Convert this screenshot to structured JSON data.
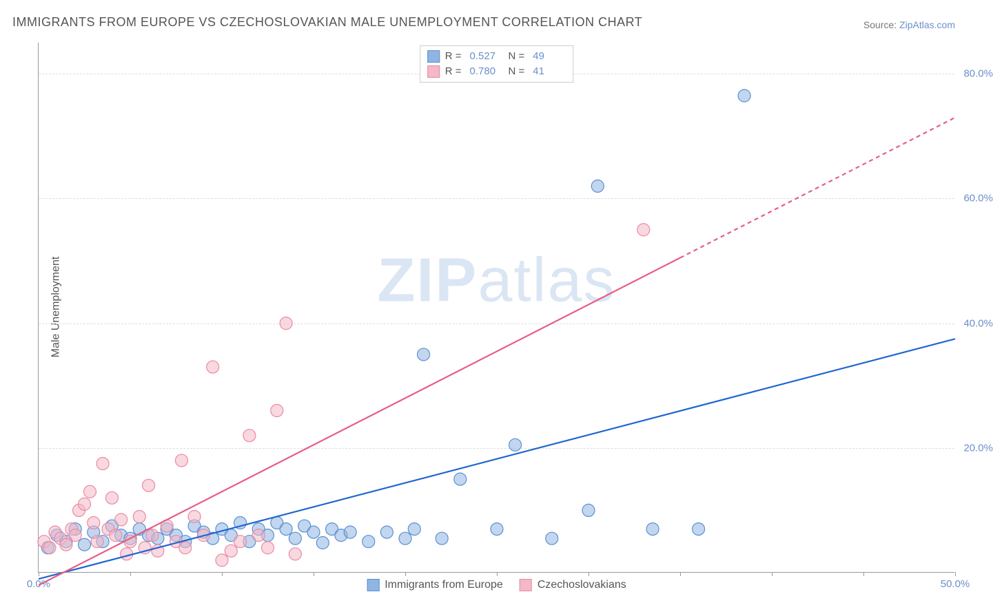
{
  "title": "IMMIGRANTS FROM EUROPE VS CZECHOSLOVAKIAN MALE UNEMPLOYMENT CORRELATION CHART",
  "source_label": "Source:",
  "source_name": "ZipAtlas.com",
  "ylabel": "Male Unemployment",
  "watermark": {
    "bold": "ZIP",
    "light": "atlas"
  },
  "chart": {
    "type": "scatter",
    "background_color": "#ffffff",
    "grid_color": "#dddddd",
    "axis_color": "#999999",
    "text_color": "#555555",
    "value_color": "#6b8fc9",
    "xlim": [
      0,
      50
    ],
    "ylim": [
      0,
      85
    ],
    "xtick_labels": [
      {
        "pos": 0,
        "label": "0.0%"
      },
      {
        "pos": 50,
        "label": "50.0%"
      }
    ],
    "xtick_positions": [
      0,
      5,
      10,
      15,
      20,
      25,
      30,
      35,
      40,
      45,
      50
    ],
    "ytick_labels": [
      {
        "pos": 20,
        "label": "20.0%"
      },
      {
        "pos": 40,
        "label": "40.0%"
      },
      {
        "pos": 60,
        "label": "60.0%"
      },
      {
        "pos": 80,
        "label": "80.0%"
      }
    ],
    "marker_radius": 9,
    "marker_opacity": 0.55,
    "marker_stroke_width": 1.2,
    "line_width": 2.2,
    "series": [
      {
        "id": "europe",
        "label": "Immigrants from Europe",
        "color": "#8fb5e3",
        "stroke": "#5a8fd0",
        "line_color": "#1f66d0",
        "R": "0.527",
        "N": "49",
        "trend": {
          "x1": 0,
          "y1": -1,
          "x2": 50,
          "y2": 37.5,
          "dash_from_x": 50
        },
        "points": [
          [
            0.5,
            4
          ],
          [
            1,
            6
          ],
          [
            1.5,
            5
          ],
          [
            2,
            7
          ],
          [
            2.5,
            4.5
          ],
          [
            3,
            6.5
          ],
          [
            3.5,
            5
          ],
          [
            4,
            7.5
          ],
          [
            4.5,
            6
          ],
          [
            5,
            5.5
          ],
          [
            5.5,
            7
          ],
          [
            6,
            6
          ],
          [
            6.5,
            5.5
          ],
          [
            7,
            7
          ],
          [
            7.5,
            6
          ],
          [
            8,
            5
          ],
          [
            8.5,
            7.5
          ],
          [
            9,
            6.5
          ],
          [
            9.5,
            5.5
          ],
          [
            10,
            7
          ],
          [
            10.5,
            6
          ],
          [
            11,
            8
          ],
          [
            11.5,
            5
          ],
          [
            12,
            7
          ],
          [
            12.5,
            6
          ],
          [
            13,
            8
          ],
          [
            13.5,
            7
          ],
          [
            14,
            5.5
          ],
          [
            14.5,
            7.5
          ],
          [
            15,
            6.5
          ],
          [
            15.5,
            4.8
          ],
          [
            16,
            7
          ],
          [
            16.5,
            6
          ],
          [
            17,
            6.5
          ],
          [
            18,
            5
          ],
          [
            19,
            6.5
          ],
          [
            20,
            5.5
          ],
          [
            20.5,
            7
          ],
          [
            21,
            35
          ],
          [
            22,
            5.5
          ],
          [
            23,
            15
          ],
          [
            25,
            7
          ],
          [
            26,
            20.5
          ],
          [
            28,
            5.5
          ],
          [
            30,
            10
          ],
          [
            30.5,
            62
          ],
          [
            33.5,
            7
          ],
          [
            36,
            7
          ],
          [
            38.5,
            76.5
          ]
        ]
      },
      {
        "id": "czech",
        "label": "Czechoslovakians",
        "color": "#f4b8c6",
        "stroke": "#e88aa3",
        "line_color": "#e85d85",
        "R": "0.780",
        "N": "41",
        "trend": {
          "x1": 0,
          "y1": -2,
          "x2": 50,
          "y2": 73,
          "dash_from_x": 35
        },
        "points": [
          [
            0.3,
            5
          ],
          [
            0.6,
            4
          ],
          [
            0.9,
            6.5
          ],
          [
            1.2,
            5.5
          ],
          [
            1.5,
            4.5
          ],
          [
            1.8,
            7
          ],
          [
            2,
            6
          ],
          [
            2.2,
            10
          ],
          [
            2.5,
            11
          ],
          [
            2.8,
            13
          ],
          [
            3,
            8
          ],
          [
            3.2,
            5
          ],
          [
            3.5,
            17.5
          ],
          [
            3.8,
            7
          ],
          [
            4,
            12
          ],
          [
            4.2,
            6
          ],
          [
            4.5,
            8.5
          ],
          [
            4.8,
            3
          ],
          [
            5,
            5
          ],
          [
            5.5,
            9
          ],
          [
            5.8,
            4
          ],
          [
            6,
            14
          ],
          [
            6.2,
            6
          ],
          [
            6.5,
            3.5
          ],
          [
            7,
            7.5
          ],
          [
            7.5,
            5
          ],
          [
            7.8,
            18
          ],
          [
            8,
            4
          ],
          [
            8.5,
            9
          ],
          [
            9,
            6
          ],
          [
            9.5,
            33
          ],
          [
            10,
            2
          ],
          [
            10.5,
            3.5
          ],
          [
            11,
            5
          ],
          [
            11.5,
            22
          ],
          [
            12,
            6
          ],
          [
            12.5,
            4
          ],
          [
            13,
            26
          ],
          [
            13.5,
            40
          ],
          [
            14,
            3
          ],
          [
            33,
            55
          ]
        ]
      }
    ]
  },
  "legend_top": {
    "R_label": "R =",
    "N_label": "N ="
  },
  "legend_bottom": [
    {
      "series": "europe"
    },
    {
      "series": "czech"
    }
  ]
}
